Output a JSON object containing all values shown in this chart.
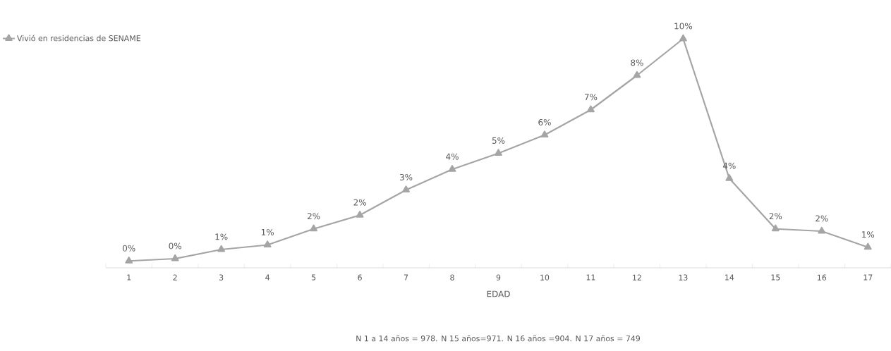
{
  "chart_data": {
    "type": "line",
    "xlabel": "EDAD",
    "categories": [
      "1",
      "2",
      "3",
      "4",
      "5",
      "6",
      "7",
      "8",
      "9",
      "10",
      "11",
      "12",
      "13",
      "14",
      "15",
      "16",
      "17"
    ],
    "series": [
      {
        "name": "Vivió en residencias de SENAME",
        "color": "#a5a5a5",
        "values": [
          0.3,
          0.4,
          0.8,
          1.0,
          1.7,
          2.3,
          3.4,
          4.3,
          5.0,
          5.8,
          6.9,
          8.4,
          10.0,
          3.9,
          1.7,
          1.6,
          0.9
        ],
        "value_labels": [
          "0%",
          "0%",
          "1%",
          "1%",
          "2%",
          "2%",
          "3%",
          "4%",
          "5%",
          "6%",
          "7%",
          "8%",
          "10%",
          "4%",
          "2%",
          "2%",
          "1%"
        ]
      }
    ],
    "marker": "triangle",
    "legend": "top left",
    "grid": false,
    "annotations": [
      "N 1 a 14 años = 978. N 15 años=971. N 16 años =904. N 17 años = 749"
    ]
  }
}
